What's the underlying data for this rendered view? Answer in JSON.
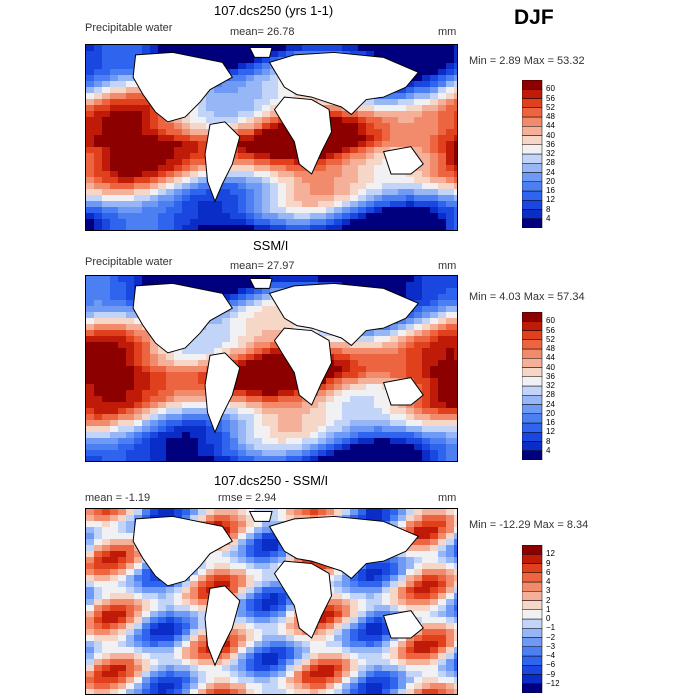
{
  "season": "DJF",
  "panels": [
    {
      "title": "107.dcs250 (yrs 1-1)",
      "left_label": "Precipitable water",
      "center_label": "mean=   26.78",
      "units": "mm",
      "minmax": "Min =    2.89 Max =   53.32"
    },
    {
      "title": "SSM/I",
      "left_label": "Precipitable water",
      "center_label": "mean=   27.97",
      "units": "mm",
      "minmax": "Min =    4.03 Max =   57.34"
    },
    {
      "title": "107.dcs250 - SSM/I",
      "left_label": "mean =   -1.19",
      "center_label": "rmse =    2.94",
      "units": "mm",
      "minmax": "Min = -12.29 Max =    8.34"
    }
  ],
  "chart_data": [
    {
      "type": "heatmap",
      "title": "107.dcs250 (yrs 1-1)",
      "field": "Precipitable water",
      "units": "mm",
      "mean": 26.78,
      "min": 2.89,
      "max": 53.32,
      "levels": [
        4,
        8,
        12,
        16,
        20,
        24,
        28,
        32,
        36,
        40,
        44,
        48,
        52,
        56,
        60
      ],
      "colors": [
        "#00007f",
        "#0a2dc8",
        "#1a47e0",
        "#2f64ee",
        "#4c7ff2",
        "#6e99f4",
        "#97b6f6",
        "#c2d4f8",
        "#f1f1f4",
        "#f6d6c6",
        "#f5b09a",
        "#f28a6c",
        "#ec6440",
        "#e0401c",
        "#c01a08",
        "#8c0000"
      ]
    },
    {
      "type": "heatmap",
      "title": "SSM/I",
      "field": "Precipitable water",
      "units": "mm",
      "mean": 27.97,
      "min": 4.03,
      "max": 57.34,
      "levels": [
        4,
        8,
        12,
        16,
        20,
        24,
        28,
        32,
        36,
        40,
        44,
        48,
        52,
        56,
        60
      ],
      "colors": [
        "#00007f",
        "#0a2dc8",
        "#1a47e0",
        "#2f64ee",
        "#4c7ff2",
        "#6e99f4",
        "#97b6f6",
        "#c2d4f8",
        "#f1f1f4",
        "#f6d6c6",
        "#f5b09a",
        "#f28a6c",
        "#ec6440",
        "#e0401c",
        "#c01a08",
        "#8c0000"
      ]
    },
    {
      "type": "heatmap",
      "title": "107.dcs250 - SSM/I",
      "units": "mm",
      "mean": -1.19,
      "rmse": 2.94,
      "min": -12.29,
      "max": 8.34,
      "levels": [
        -12,
        -9,
        -6,
        -4,
        -3,
        -2,
        -1,
        0,
        1,
        2,
        3,
        4,
        6,
        9,
        12
      ],
      "colors": [
        "#00007f",
        "#0a2dc8",
        "#1a47e0",
        "#2f64ee",
        "#4c7ff2",
        "#6e99f4",
        "#97b6f6",
        "#c2d4f8",
        "#f1f1f4",
        "#f6d6c6",
        "#f5b09a",
        "#f28a6c",
        "#ec6440",
        "#e0401c",
        "#c01a08",
        "#8c0000"
      ]
    }
  ]
}
